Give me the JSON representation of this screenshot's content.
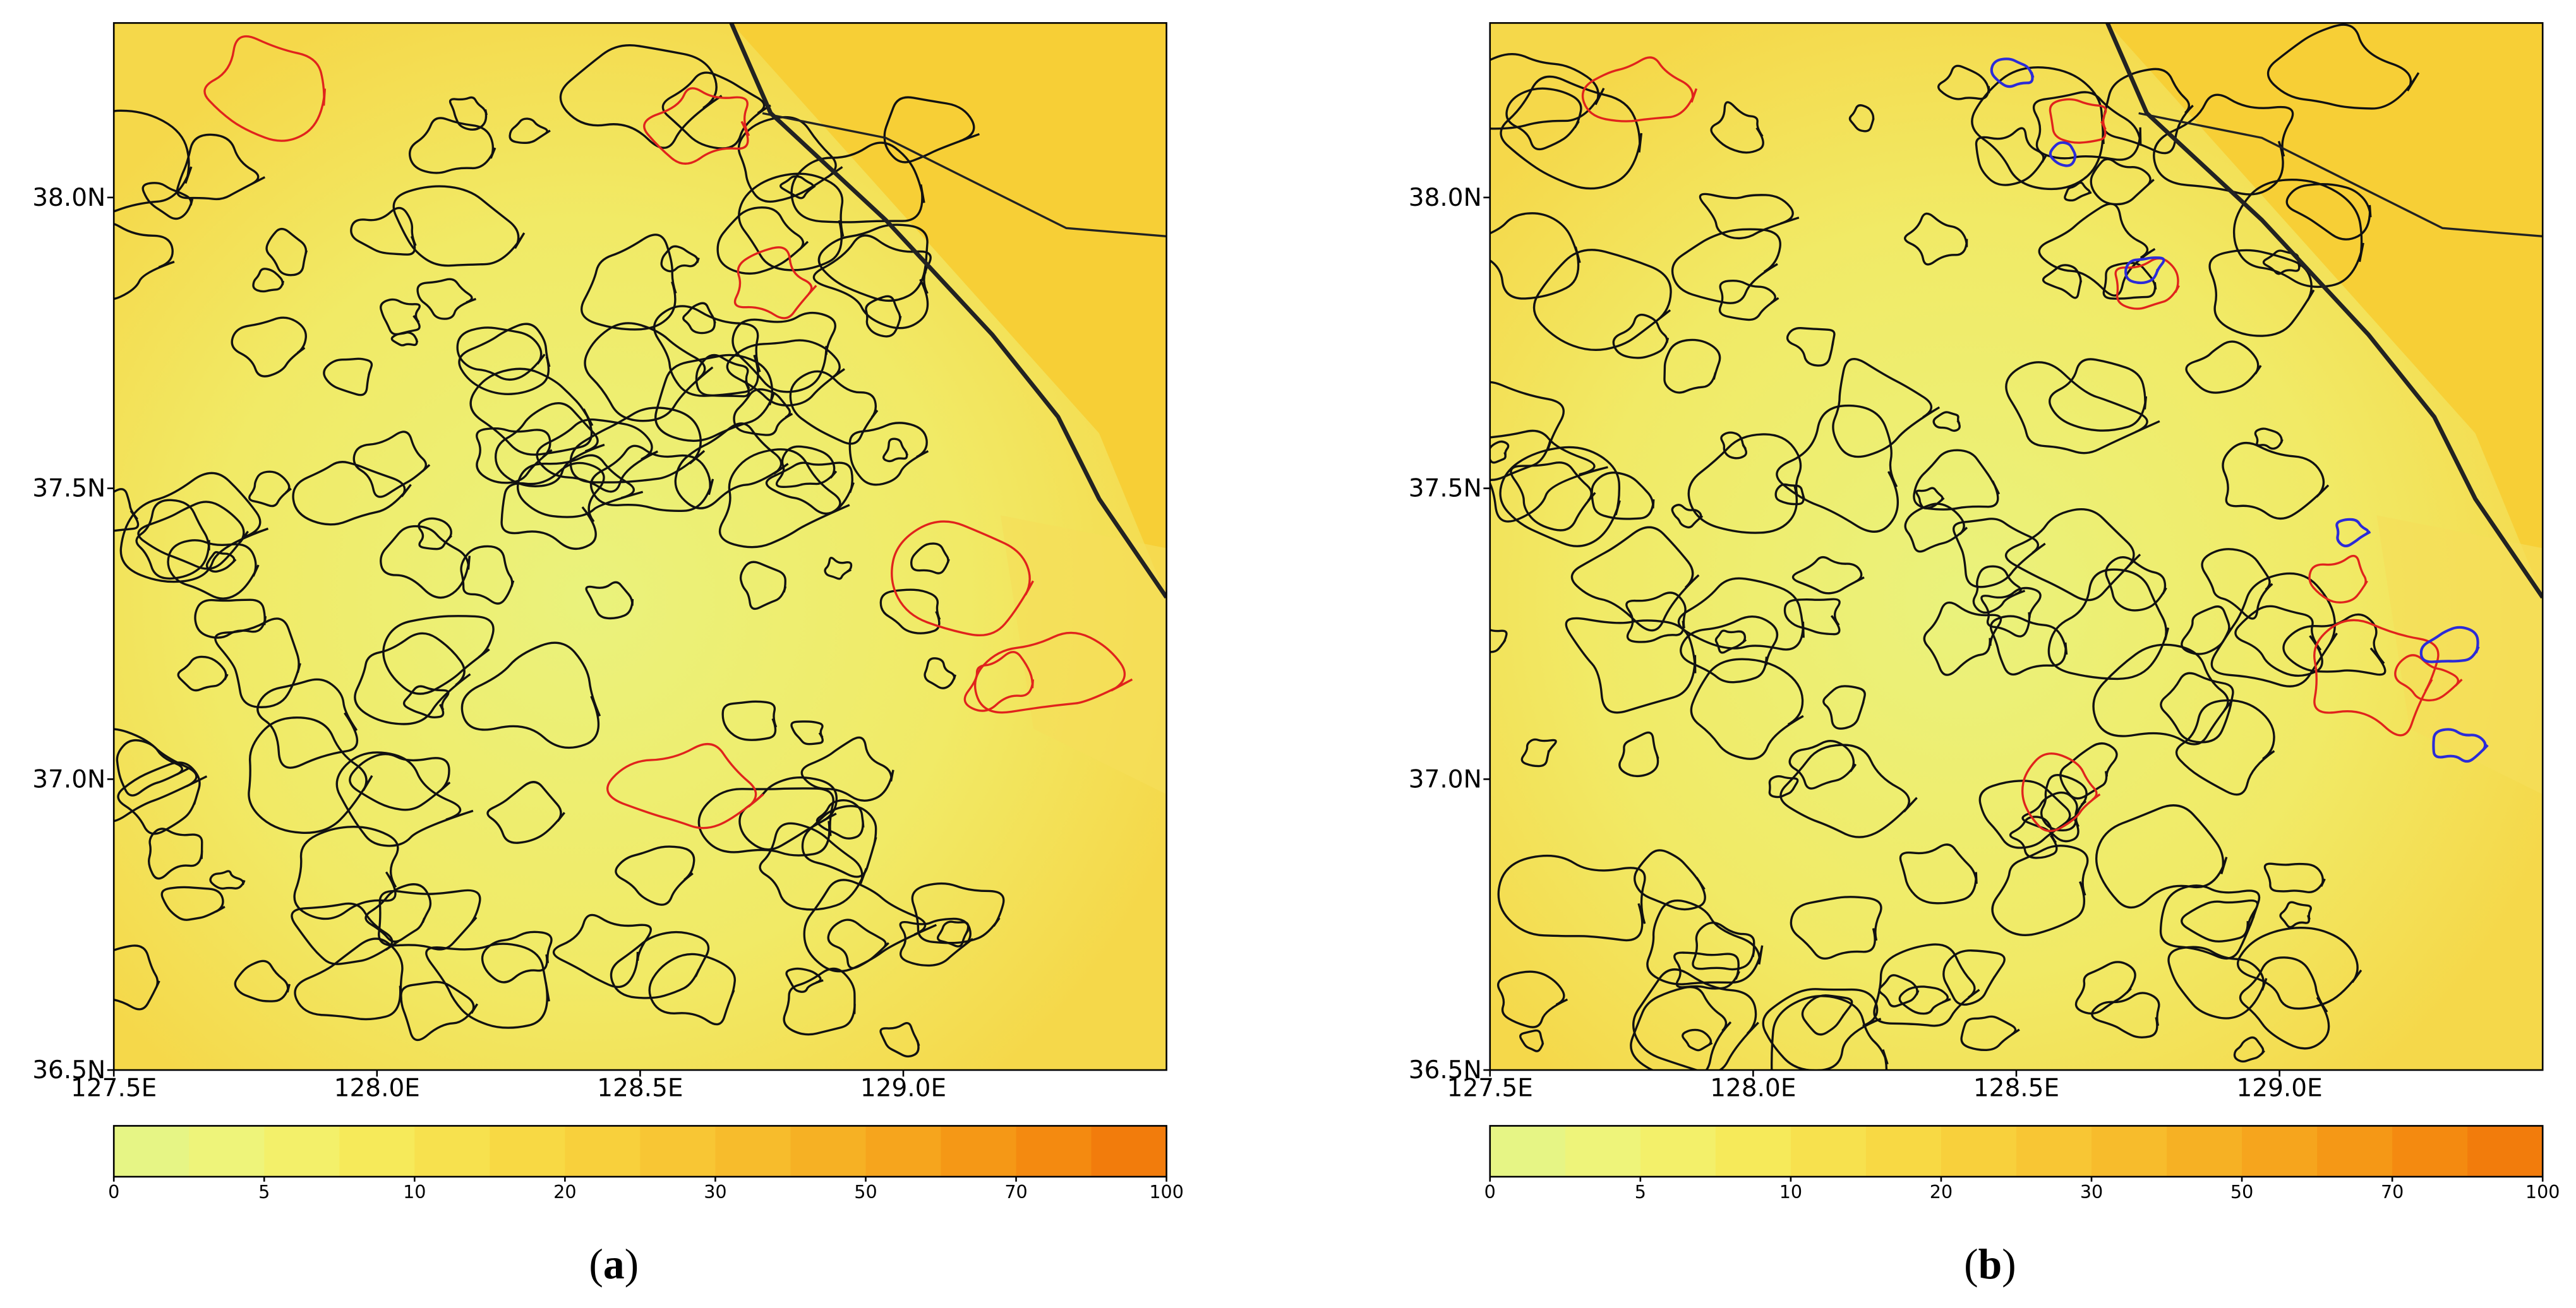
{
  "figure": {
    "panels": [
      {
        "label": "(a)",
        "xlim": [
          127.5,
          129.5
        ],
        "ylim": [
          36.5,
          38.3
        ],
        "xticks": [
          {
            "value": 127.5,
            "label": "127.5E"
          },
          {
            "value": 128.0,
            "label": "128.0E"
          },
          {
            "value": 128.5,
            "label": "128.5E"
          },
          {
            "value": 129.0,
            "label": "129.0E"
          }
        ],
        "yticks": [
          {
            "value": 36.5,
            "label": "36.5N"
          },
          {
            "value": 37.0,
            "label": "37.0N"
          },
          {
            "value": 37.5,
            "label": "37.5N"
          },
          {
            "value": 38.0,
            "label": "38.0N"
          }
        ],
        "colorbar": {
          "ticks": [
            0,
            5,
            10,
            20,
            30,
            50,
            70,
            100
          ],
          "colors": [
            "#e6f585",
            "#eef47a",
            "#f3f06a",
            "#f6ea5a",
            "#f7e14e",
            "#f8d944",
            "#f8d03c",
            "#f8c634",
            "#f7bc2c",
            "#f6b124",
            "#f6a51d",
            "#f59816",
            "#f48a10",
            "#f27c0c"
          ]
        }
      },
      {
        "label": "(b)",
        "xlim": [
          127.5,
          129.5
        ],
        "ylim": [
          36.5,
          38.3
        ],
        "xticks": [
          {
            "value": 127.5,
            "label": "127.5E"
          },
          {
            "value": 128.0,
            "label": "128.0E"
          },
          {
            "value": 128.5,
            "label": "128.5E"
          },
          {
            "value": 129.0,
            "label": "129.0E"
          }
        ],
        "yticks": [
          {
            "value": 36.5,
            "label": "36.5N"
          },
          {
            "value": 37.0,
            "label": "37.0N"
          },
          {
            "value": 37.5,
            "label": "37.5N"
          },
          {
            "value": 38.0,
            "label": "38.0N"
          }
        ],
        "colorbar": {
          "ticks": [
            0,
            5,
            10,
            20,
            30,
            50,
            70,
            100
          ],
          "colors": [
            "#e6f585",
            "#eef47a",
            "#f3f06a",
            "#f6ea5a",
            "#f7e14e",
            "#f8d944",
            "#f8d03c",
            "#f8c634",
            "#f7bc2c",
            "#f6b124",
            "#f6a51d",
            "#f59816",
            "#f48a10",
            "#f27c0c"
          ]
        }
      }
    ]
  }
}
